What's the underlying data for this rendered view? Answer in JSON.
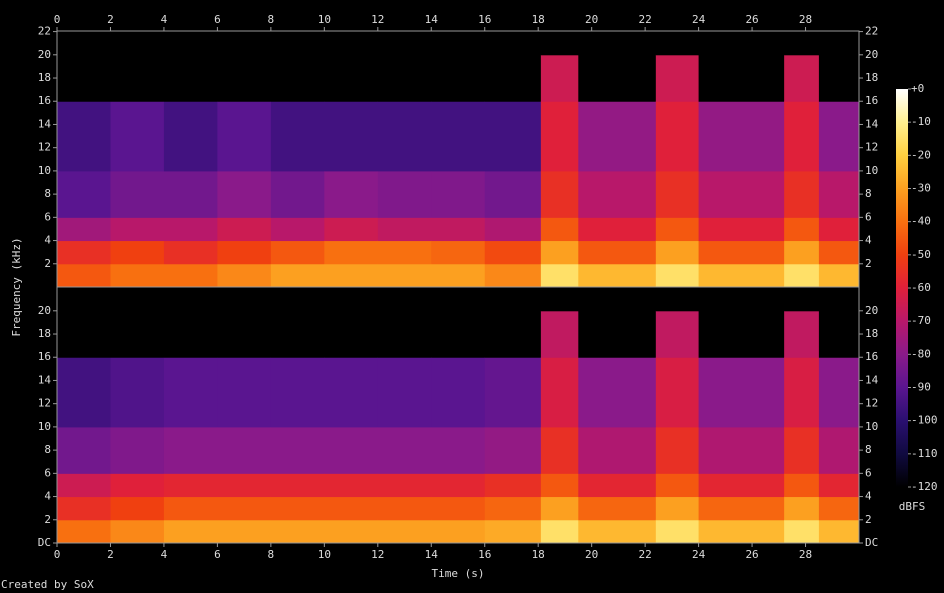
{
  "chart_data": {
    "type": "spectrogram",
    "x_label": "Time (s)",
    "y_label": "Frequency (kHz)",
    "colorbar_label": "dBFS",
    "footer": "Created by SoX",
    "xlim": [
      0,
      30
    ],
    "xticks": [
      0,
      2,
      4,
      6,
      8,
      10,
      12,
      14,
      16,
      18,
      20,
      22,
      24,
      26,
      28
    ],
    "time_edges": [
      0,
      2,
      4,
      6,
      8,
      10,
      12,
      14,
      16,
      18.1,
      19.5,
      22.4,
      24,
      27.2,
      28.5,
      30
    ],
    "freq_edges": [
      0,
      2,
      4,
      6,
      10,
      16,
      20,
      22.05
    ],
    "clim": [
      -120,
      0
    ],
    "colormap": [
      "#000000",
      "#100a40",
      "#2a0f70",
      "#5a1590",
      "#8a1a8a",
      "#b8186a",
      "#e0203a",
      "#f04010",
      "#f87010",
      "#fca020",
      "#ffd040",
      "#fff090",
      "#ffffff"
    ],
    "cticks": [
      {
        "value": 0,
        "label": "+0"
      },
      -10,
      -20,
      -30,
      -40,
      -50,
      -60,
      -70,
      -80,
      -90,
      -100,
      -110,
      -120
    ],
    "channels": [
      {
        "ylim": [
          0,
          22.05
        ],
        "yticks": [
          2,
          4,
          6,
          8,
          10,
          12,
          14,
          16,
          18,
          20,
          22
        ],
        "values": [
          [
            -45,
            -55,
            -75,
            -90,
            -95,
            -120,
            -120
          ],
          [
            -40,
            -50,
            -70,
            -85,
            -90,
            -120,
            -120
          ],
          [
            -40,
            -55,
            -70,
            -85,
            -95,
            -120,
            -120
          ],
          [
            -35,
            -50,
            -65,
            -80,
            -90,
            -120,
            -120
          ],
          [
            -30,
            -45,
            -70,
            -85,
            -95,
            -120,
            -120
          ],
          [
            -30,
            -40,
            -65,
            -80,
            -95,
            -120,
            -120
          ],
          [
            -30,
            -40,
            -68,
            -82,
            -95,
            -120,
            -120
          ],
          [
            -30,
            -42,
            -68,
            -82,
            -95,
            -120,
            -120
          ],
          [
            -35,
            -48,
            -72,
            -85,
            -95,
            -120,
            -120
          ],
          [
            -15,
            -30,
            -45,
            -55,
            -60,
            -65,
            -120
          ],
          [
            -25,
            -45,
            -60,
            -70,
            -78,
            -120,
            -120
          ],
          [
            -15,
            -30,
            -45,
            -55,
            -60,
            -65,
            -120
          ],
          [
            -25,
            -45,
            -60,
            -70,
            -78,
            -120,
            -120
          ],
          [
            -15,
            -30,
            -45,
            -55,
            -60,
            -65,
            -120
          ],
          [
            -25,
            -45,
            -60,
            -70,
            -80,
            -120,
            -120
          ]
        ]
      },
      {
        "ylim": [
          0,
          22.05
        ],
        "yticks": [
          {
            "value": 0,
            "label": "DC"
          },
          2,
          4,
          6,
          8,
          10,
          12,
          14,
          16,
          18,
          20
        ],
        "values": [
          [
            -40,
            -55,
            -65,
            -85,
            -95,
            -120,
            -120
          ],
          [
            -35,
            -50,
            -60,
            -82,
            -92,
            -120,
            -120
          ],
          [
            -30,
            -45,
            -58,
            -80,
            -90,
            -120,
            -120
          ],
          [
            -30,
            -45,
            -58,
            -80,
            -90,
            -120,
            -120
          ],
          [
            -30,
            -45,
            -58,
            -80,
            -90,
            -120,
            -120
          ],
          [
            -30,
            -45,
            -58,
            -80,
            -90,
            -120,
            -120
          ],
          [
            -30,
            -45,
            -58,
            -80,
            -90,
            -120,
            -120
          ],
          [
            -30,
            -45,
            -58,
            -80,
            -90,
            -120,
            -120
          ],
          [
            -28,
            -42,
            -55,
            -78,
            -88,
            -120,
            -120
          ],
          [
            -15,
            -30,
            -45,
            -55,
            -62,
            -68,
            -120
          ],
          [
            -25,
            -42,
            -58,
            -72,
            -80,
            -120,
            -120
          ],
          [
            -15,
            -30,
            -45,
            -55,
            -62,
            -68,
            -120
          ],
          [
            -25,
            -42,
            -58,
            -72,
            -80,
            -120,
            -120
          ],
          [
            -15,
            -30,
            -45,
            -55,
            -62,
            -68,
            -120
          ],
          [
            -25,
            -42,
            -58,
            -72,
            -80,
            -120,
            -120
          ]
        ]
      }
    ]
  }
}
